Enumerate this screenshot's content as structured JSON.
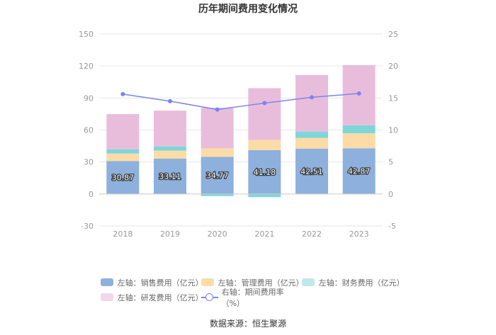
{
  "chart_data": {
    "type": "bar",
    "stacked": true,
    "title": "历年期间费用变化情况",
    "categories": [
      "2018",
      "2019",
      "2020",
      "2021",
      "2022",
      "2023"
    ],
    "y_left": {
      "min": -30,
      "max": 150,
      "ticks": [
        -30,
        0,
        30,
        60,
        90,
        120,
        150
      ]
    },
    "y_right": {
      "min": -5,
      "max": 25,
      "ticks": [
        -5,
        0,
        5,
        10,
        15,
        20,
        25
      ]
    },
    "series": [
      {
        "name": "左轴：销售费用（亿元）",
        "axis": "left",
        "type": "bar",
        "color": "#8eb0dd",
        "values": [
          30.87,
          33.11,
          34.77,
          41.18,
          42.51,
          42.87
        ],
        "labels": [
          "30.87",
          "33.11",
          "34.77",
          "41.18",
          "42.51",
          "42.87"
        ]
      },
      {
        "name": "左轴：管理费用（亿元）",
        "axis": "left",
        "type": "bar",
        "color": "#fddba6",
        "values": [
          7.0,
          7.5,
          8.0,
          9.5,
          10.0,
          14.0
        ]
      },
      {
        "name": "左轴：财务费用（亿元）",
        "axis": "left",
        "type": "bar",
        "color": "#7fd6d8",
        "values": [
          4.0,
          4.0,
          -2.0,
          -3.0,
          6.0,
          7.5
        ]
      },
      {
        "name": "左轴：研发费用（亿元）",
        "axis": "left",
        "type": "bar",
        "color": "#e8bddc",
        "values": [
          33.0,
          33.5,
          38.0,
          48.5,
          53.0,
          56.5
        ]
      },
      {
        "name": "右轴：期间费用率（%）",
        "axis": "right",
        "type": "line",
        "color": "#7b83f0",
        "values": [
          15.6,
          14.5,
          13.2,
          14.2,
          15.1,
          15.7
        ]
      }
    ]
  },
  "source": "数据来源：恒生聚源"
}
